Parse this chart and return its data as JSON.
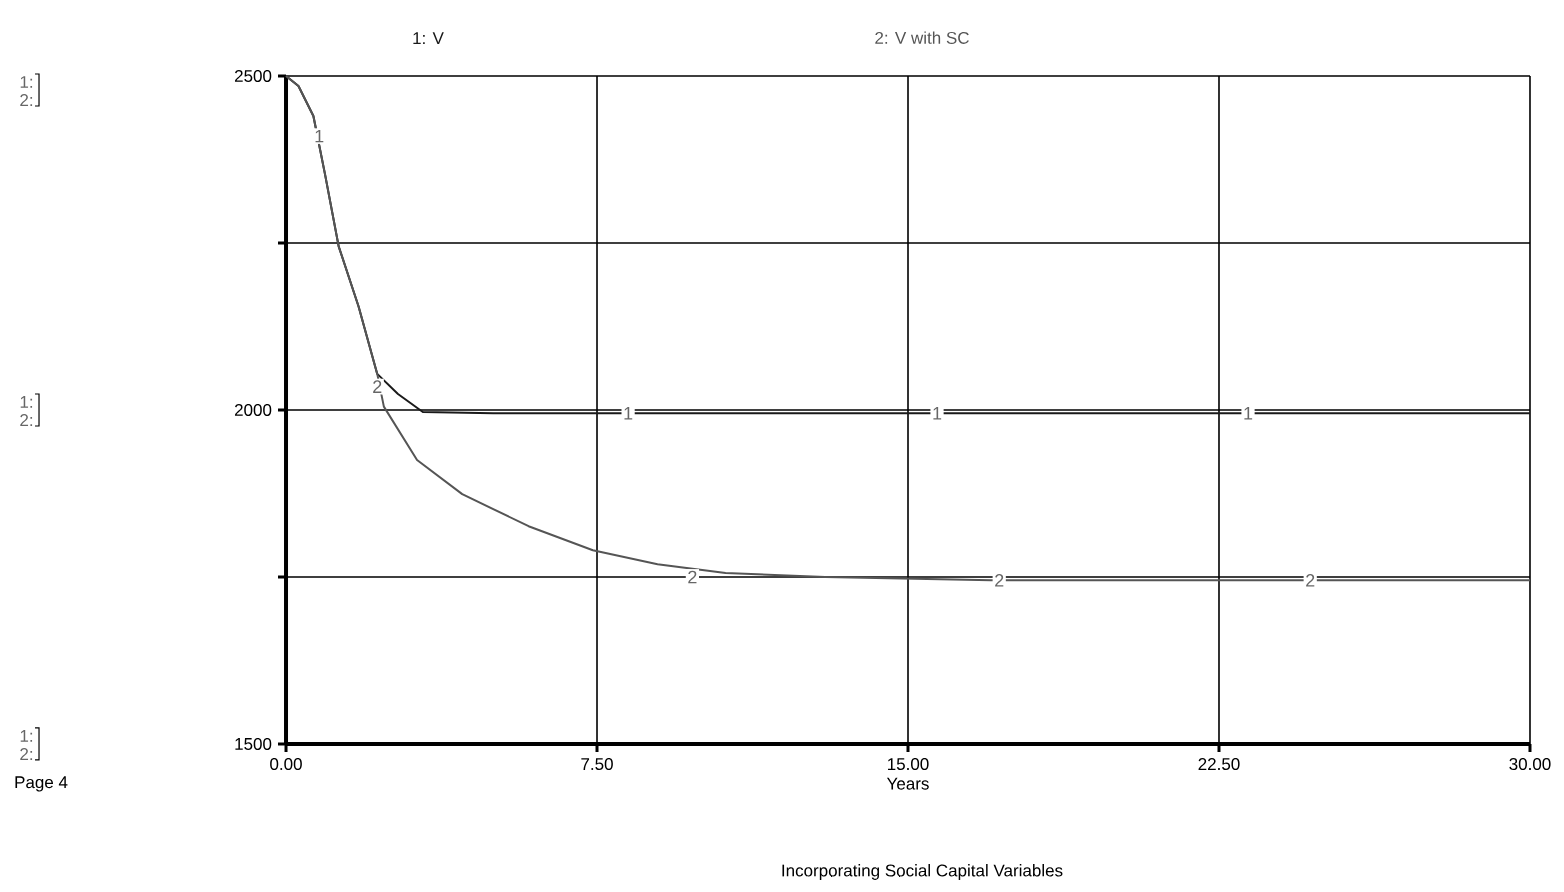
{
  "chart_data": {
    "type": "line",
    "title": "Incorporating Social Capital Variables",
    "xlabel": "Years",
    "xlim": [
      0,
      30
    ],
    "ylim": [
      1500,
      2500
    ],
    "xticks": [
      {
        "value": 0,
        "label": "0.00"
      },
      {
        "value": 7.5,
        "label": "7.50"
      },
      {
        "value": 15,
        "label": "15.00"
      },
      {
        "value": 22.5,
        "label": "22.50"
      },
      {
        "value": 30,
        "label": "30.00"
      }
    ],
    "yticks": [
      1500,
      {
        "value": 1750,
        "label": null
      },
      2000,
      {
        "value": 2250,
        "label": null
      },
      2500
    ],
    "grid": true,
    "legend": "top",
    "marker": "none",
    "line_style": "solid",
    "series": [
      {
        "name": "1: V",
        "color": "#1a1a1a",
        "x": [
          0,
          0.3,
          0.66,
          0.94,
          1.27,
          1.75,
          2.2,
          2.7,
          3.3,
          5,
          10,
          15,
          20,
          25,
          30
        ],
        "values": [
          2500,
          2485,
          2440,
          2353,
          2245,
          2155,
          2054,
          2024,
          1997,
          1995,
          1995,
          1995,
          1995,
          1995,
          1995
        ]
      },
      {
        "name": "2: V with SC",
        "color": "#555555",
        "x": [
          0,
          0.3,
          0.66,
          0.94,
          1.27,
          1.75,
          2.2,
          2.36,
          3.16,
          4.25,
          5.85,
          7.4,
          8.96,
          10.6,
          13,
          17,
          20,
          25,
          30
        ],
        "values": [
          2500,
          2485,
          2440,
          2353,
          2245,
          2155,
          2054,
          2005,
          1925,
          1874,
          1826,
          1790,
          1769,
          1756,
          1750,
          1745,
          1745,
          1745,
          1745
        ]
      }
    ],
    "annotations": [
      "1:",
      "2:",
      "1:",
      "2:",
      "1:",
      "2:",
      "Page 4",
      {
        "text": "1",
        "x": 0.8,
        "y": 2410
      },
      {
        "text": "1",
        "x": 8.25,
        "y": 1995
      },
      {
        "text": "1",
        "x": 15.7,
        "y": 1995
      },
      {
        "text": "1",
        "x": 23.2,
        "y": 1995
      },
      {
        "text": "2",
        "x": 2.2,
        "y": 2035
      },
      {
        "text": "2",
        "x": 9.8,
        "y": 1750
      },
      {
        "text": "2",
        "x": 17.2,
        "y": 1745
      },
      {
        "text": "2",
        "x": 24.7,
        "y": 1745
      }
    ]
  }
}
